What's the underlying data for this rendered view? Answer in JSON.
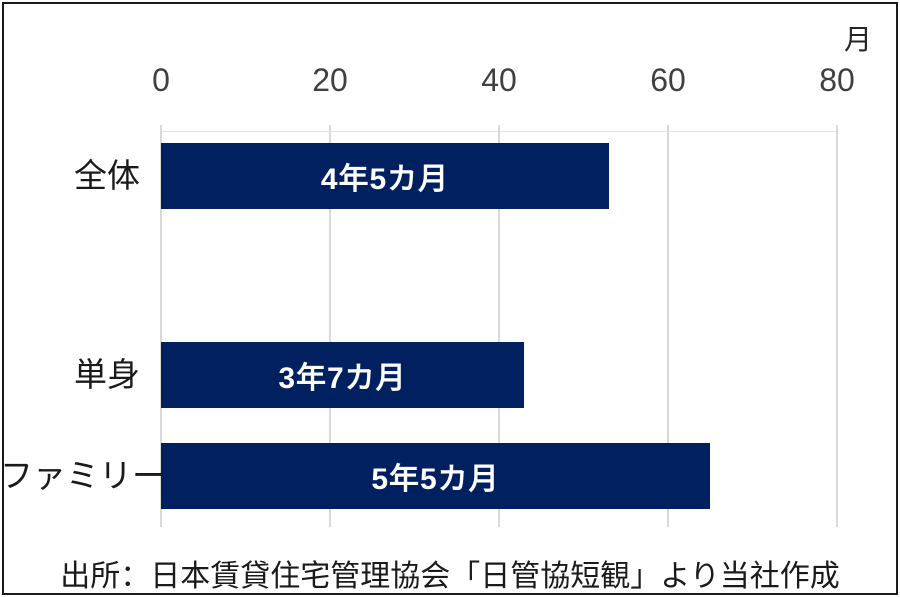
{
  "chart_data": {
    "type": "bar",
    "orientation": "horizontal",
    "unit": "月",
    "categories": [
      "全体",
      "単身",
      "ファミリー"
    ],
    "values": [
      53,
      43,
      65
    ],
    "data_labels": [
      "4年5カ月",
      "3年7カ月",
      "5年5カ月"
    ],
    "xlim": [
      0,
      80
    ],
    "xticks": [
      0,
      20,
      40,
      60,
      80
    ],
    "axis_position": "top",
    "grid": true,
    "legend": false,
    "bar_color": "#002060",
    "gridline_color": "#d9d9d9",
    "bar_label_color": "#ffffff",
    "layout_note": "empty category slot between first bar and the last two bars",
    "source_note": "出所：日本賃貸住宅管理協会「日管協短観」より当社作成"
  }
}
